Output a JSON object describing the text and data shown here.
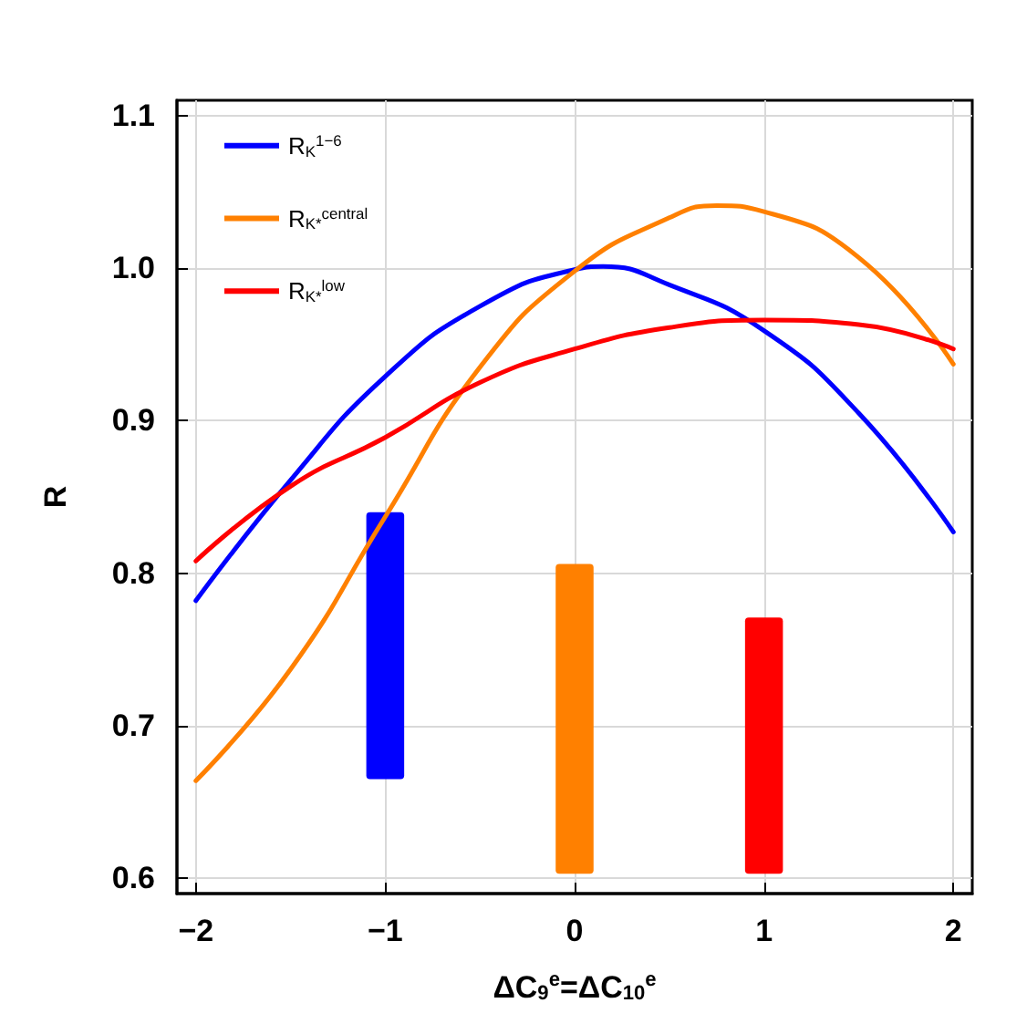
{
  "chart_data": {
    "type": "line",
    "xlabel": "ΔC$_{9}$$^{e}$=ΔC$_{10}$$^{e}$",
    "ylabel": "R",
    "xlim": [
      -2.1,
      2.1
    ],
    "ylim": [
      0.59,
      1.11
    ],
    "xticks": [
      {
        "value": -2,
        "label": "−2"
      },
      {
        "value": -1,
        "label": "−1"
      },
      0,
      1,
      2
    ],
    "yticks": [
      0.6,
      0.7,
      0.8,
      0.9,
      {
        "value": 1,
        "label": "1.0"
      },
      1.1
    ],
    "grid": true,
    "legend": "top left",
    "marker": "none",
    "line_style": "solid",
    "series": [
      {
        "name": "R$_{K}$$^{1−6}$",
        "color": "#0000ff",
        "x": [
          -2,
          -1.5,
          -1,
          -0.5,
          0,
          0.15,
          0.5,
          1,
          1.5,
          2
        ],
        "values": [
          0.782,
          0.861,
          0.929,
          0.975,
          0.999,
          1.001,
          0.989,
          0.959,
          0.905,
          0.827
        ]
      },
      {
        "name": "R$_{K*}$$^{central}$",
        "color": "#ff8000",
        "x": [
          -2,
          -1.5,
          -1,
          -0.5,
          0,
          0.5,
          0.75,
          1,
          1.5,
          2
        ],
        "values": [
          0.664,
          0.737,
          0.837,
          0.935,
          0.998,
          1.033,
          1.041,
          1.037,
          1.007,
          0.937
        ]
      },
      {
        "name": "R$_{K*}$$^{low}$",
        "color": "#ff0000",
        "x": [
          -2,
          -1.5,
          -1,
          -0.5,
          0,
          0.5,
          1,
          1.5,
          2
        ],
        "values": [
          0.808,
          0.857,
          0.889,
          0.925,
          0.947,
          0.961,
          0.966,
          0.963,
          0.947
        ]
      },
      {
        "type": "bar",
        "x": [
          -1,
          0,
          1
        ],
        "base": [
          0.665,
          0.603,
          0.603
        ],
        "values": [
          0.175,
          0.203,
          0.168
        ],
        "colors": [
          "#0000ff",
          "#ff8000",
          "#ff0000"
        ]
      }
    ]
  }
}
